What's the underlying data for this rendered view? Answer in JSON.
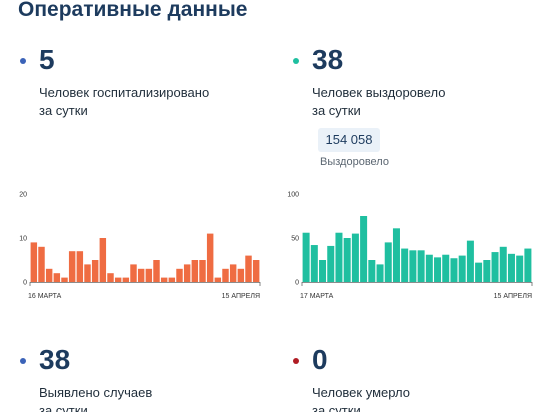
{
  "page": {
    "title": "Оперативные данные"
  },
  "stats": [
    {
      "value": "5",
      "label_line1": "Человек госпитализировано",
      "label_line2": "за сутки",
      "dot_color": "#3b63b8"
    },
    {
      "value": "38",
      "label_line1": "Человек выздоровело",
      "label_line2": "за сутки",
      "dot_color": "#1fbfa0"
    },
    {
      "value": "38",
      "label_line1": "Выявлено случаев",
      "label_line2": "за сутки",
      "dot_color": "#3b63b8"
    },
    {
      "value": "0",
      "label_line1": "Человек умерло",
      "label_line2": "за сутки",
      "dot_color": "#b01c24"
    }
  ],
  "recovered_total": {
    "value": "154 058",
    "caption": "Выздоровело"
  },
  "chart_data": [
    {
      "type": "bar",
      "color": "#ef6c42",
      "x_start_label": "16 МАРТА",
      "x_end_label": "15 АПРЕЛЯ",
      "y_ticks": [
        0,
        10,
        20
      ],
      "ylim": [
        0,
        20
      ],
      "grid": false,
      "values": [
        9,
        8,
        3,
        2,
        1,
        7,
        7,
        4,
        5,
        10,
        2,
        1,
        1,
        4,
        3,
        3,
        5,
        1,
        1,
        3,
        4,
        5,
        5,
        11,
        1,
        3,
        4,
        3,
        6,
        5
      ]
    },
    {
      "type": "bar",
      "color": "#1fbfa0",
      "x_start_label": "17 МАРТА",
      "x_end_label": "15 АПРЕЛЯ",
      "y_ticks": [
        0,
        50,
        100
      ],
      "ylim": [
        0,
        100
      ],
      "grid": false,
      "values": [
        56,
        42,
        25,
        41,
        56,
        50,
        55,
        75,
        25,
        20,
        45,
        61,
        38,
        36,
        36,
        31,
        28,
        31,
        27,
        30,
        47,
        22,
        25,
        34,
        40,
        32,
        30,
        38
      ]
    }
  ]
}
